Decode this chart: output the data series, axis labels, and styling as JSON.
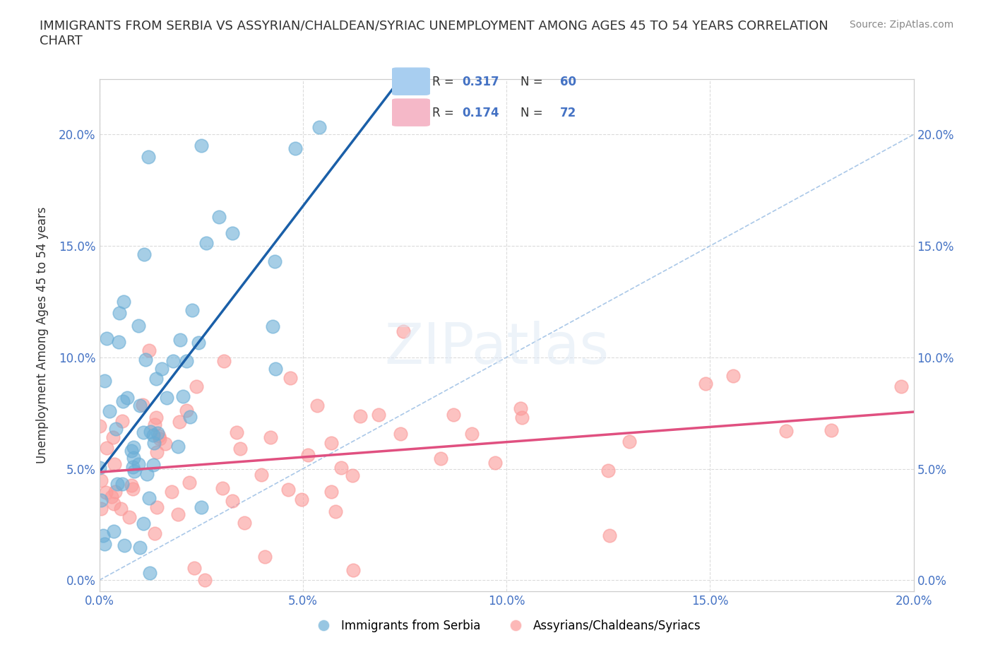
{
  "title": "IMMIGRANTS FROM SERBIA VS ASSYRIAN/CHALDEAN/SYRIAC UNEMPLOYMENT AMONG AGES 45 TO 54 YEARS CORRELATION\nCHART",
  "source": "Source: ZipAtlas.com",
  "xlabel": "",
  "ylabel": "Unemployment Among Ages 45 to 54 years",
  "xlim": [
    0.0,
    0.2
  ],
  "ylim": [
    -0.005,
    0.225
  ],
  "xticks": [
    0.0,
    0.05,
    0.1,
    0.15,
    0.2
  ],
  "xticklabels": [
    "0.0%",
    "5.0%",
    "10.0%",
    "15.0%",
    "20.0%"
  ],
  "yticks": [
    0.0,
    0.05,
    0.1,
    0.15,
    0.2
  ],
  "yticklabels": [
    "0.0%",
    "5.0%",
    "10.0%",
    "15.0%",
    "20.0%"
  ],
  "serbia_color": "#6baed6",
  "assyrian_color": "#fb9a99",
  "legend_box_color_serbia": "#a8cef0",
  "legend_box_color_assyrian": "#f5b8c8",
  "R_serbia": 0.317,
  "N_serbia": 60,
  "R_assyrian": 0.174,
  "N_assyrian": 72,
  "watermark": "ZIPatlas",
  "bg_color": "#ffffff",
  "grid_color": "#cccccc",
  "tick_color": "#4472c4",
  "regression_serbia_color": "#1a5fa8",
  "regression_assyrian_color": "#e05080",
  "diagonal_color": "#aac8e8"
}
